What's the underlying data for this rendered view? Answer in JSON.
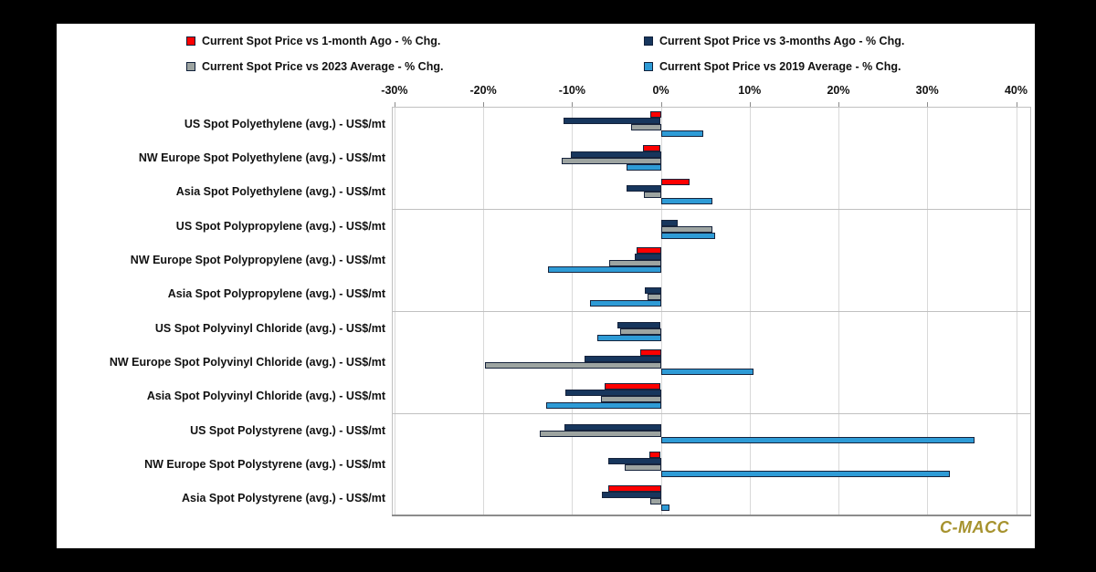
{
  "watermark": "C-MACC",
  "colors": {
    "red": "#fe0000",
    "navy": "#17365d",
    "gray": "#9da4a1",
    "blue": "#2e9bd6",
    "bar_border": "#16233c",
    "gridline": "#d9d9d9",
    "plot_border": "#c0c0c0",
    "axis_line": "#8c8c8c",
    "watermark_color": "#a6922e",
    "background": "#ffffff",
    "page_frame": "#000000"
  },
  "chart_data": {
    "type": "bar",
    "orientation": "horizontal",
    "title": "",
    "legend_position": "top",
    "grid": true,
    "group_size": 3,
    "x_axis": {
      "min": -30.3,
      "max": 41.7,
      "tick_values": [
        -30,
        -20,
        -10,
        0,
        10,
        20,
        30,
        40
      ],
      "tick_labels": [
        "-30%",
        "-20%",
        "-10%",
        "0%",
        "10%",
        "20%",
        "30%",
        "40%"
      ]
    },
    "categories": [
      "US Spot Polyethylene (avg.) - US$/mt",
      "NW Europe Spot Polyethylene (avg.) - US$/mt",
      "Asia Spot Polyethylene (avg.) - US$/mt",
      "US Spot Polypropylene (avg.) - US$/mt",
      "NW Europe Spot Polypropylene (avg.) - US$/mt",
      "Asia Spot Polypropylene (avg.) - US$/mt",
      "US Spot Polyvinyl Chloride (avg.) - US$/mt",
      "NW Europe Spot Polyvinyl Chloride (avg.)  - US$/mt",
      "Asia Spot Polyvinyl Chloride (avg.) - US$/mt",
      "US Spot Polystyrene (avg.) - US$/mt",
      "NW Europe Spot Polystyrene (avg.) - US$/mt",
      "Asia Spot Polystyrene (avg.) - US$/mt"
    ],
    "series": [
      {
        "name": "Current Spot Price vs 1-month Ago - % Chg.",
        "color_key": "red",
        "values": [
          -1.2,
          -2.0,
          3.2,
          0,
          -2.7,
          0,
          0,
          -2.3,
          -6.3,
          0,
          -1.3,
          -5.9
        ]
      },
      {
        "name": "Current Spot Price vs 3-months Ago - % Chg.",
        "color_key": "navy",
        "values": [
          -11.0,
          -10.1,
          -3.9,
          1.9,
          -2.9,
          -1.8,
          -4.9,
          -8.6,
          -10.8,
          -10.9,
          -5.9,
          -6.6
        ]
      },
      {
        "name": "Current Spot Price vs 2023 Average - % Chg.",
        "color_key": "gray",
        "values": [
          -3.4,
          -11.2,
          -1.9,
          5.8,
          -5.8,
          -1.5,
          -4.6,
          -19.8,
          -6.8,
          -13.6,
          -4.1,
          -1.2
        ]
      },
      {
        "name": "Current Spot Price vs 2019 Average - % Chg.",
        "color_key": "blue",
        "values": [
          4.8,
          -3.9,
          5.8,
          6.1,
          -12.7,
          -8.0,
          -7.2,
          10.4,
          -12.9,
          35.3,
          32.6,
          1.0
        ]
      }
    ]
  }
}
